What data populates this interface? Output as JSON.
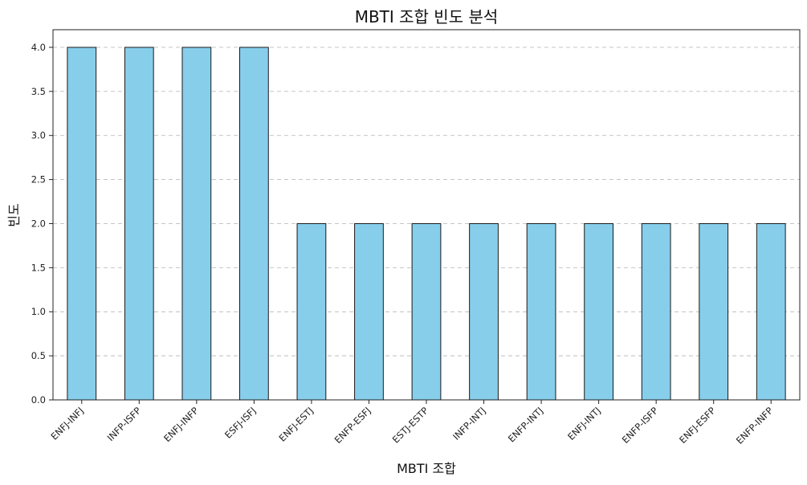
{
  "chart_data": {
    "type": "bar",
    "title": "MBTI 조합 빈도 분석",
    "xlabel": "MBTI 조합",
    "ylabel": "빈도",
    "categories": [
      "ENFJ-INFJ",
      "INFP-ISFP",
      "ENFJ-INFP",
      "ESFJ-ISFJ",
      "ENFJ-ESTJ",
      "ENFP-ESFJ",
      "ESTJ-ESTP",
      "INFP-INTJ",
      "ENFP-INTJ",
      "ENFJ-INTJ",
      "ENFP-ISFP",
      "ENFJ-ESFP",
      "ENFP-INFP"
    ],
    "values": [
      4,
      4,
      4,
      4,
      2,
      2,
      2,
      2,
      2,
      2,
      2,
      2,
      2
    ],
    "ylim": [
      0,
      4.2
    ],
    "yticks": [
      "0.0",
      "0.5",
      "1.0",
      "1.5",
      "2.0",
      "2.5",
      "3.0",
      "3.5",
      "4.0"
    ],
    "grid": "y-dashed",
    "bar_color": "#87ceeb",
    "edge_color": "#1a1a1a"
  }
}
